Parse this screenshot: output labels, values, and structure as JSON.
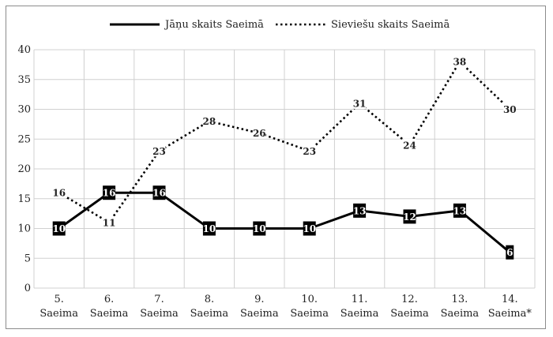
{
  "chart_data": {
    "type": "line",
    "categories": [
      [
        "5.",
        "Saeima"
      ],
      [
        "6.",
        "Saeima"
      ],
      [
        "7.",
        "Saeima"
      ],
      [
        "8.",
        "Saeima"
      ],
      [
        "9.",
        "Saeima"
      ],
      [
        "10.",
        "Saeima"
      ],
      [
        "11.",
        "Saeima"
      ],
      [
        "12.",
        "Saeima"
      ],
      [
        "13.",
        "Saeima"
      ],
      [
        "14.",
        "Saeima*"
      ]
    ],
    "series": [
      {
        "name": "Jāņu skaits Saeimā",
        "style": "solid",
        "color": "#000000",
        "values": [
          10,
          16,
          16,
          10,
          10,
          10,
          13,
          12,
          13,
          6
        ]
      },
      {
        "name": "Sieviešu skaits Saeimā",
        "style": "dotted",
        "color": "#000000",
        "values": [
          16,
          11,
          23,
          28,
          26,
          23,
          31,
          24,
          38,
          30
        ]
      }
    ],
    "ylim": [
      0,
      40
    ],
    "yticks": [
      0,
      5,
      10,
      15,
      20,
      25,
      30,
      35,
      40
    ],
    "grid": true,
    "legend_position": "top-center",
    "gridline_color": "#d0d0d0"
  }
}
